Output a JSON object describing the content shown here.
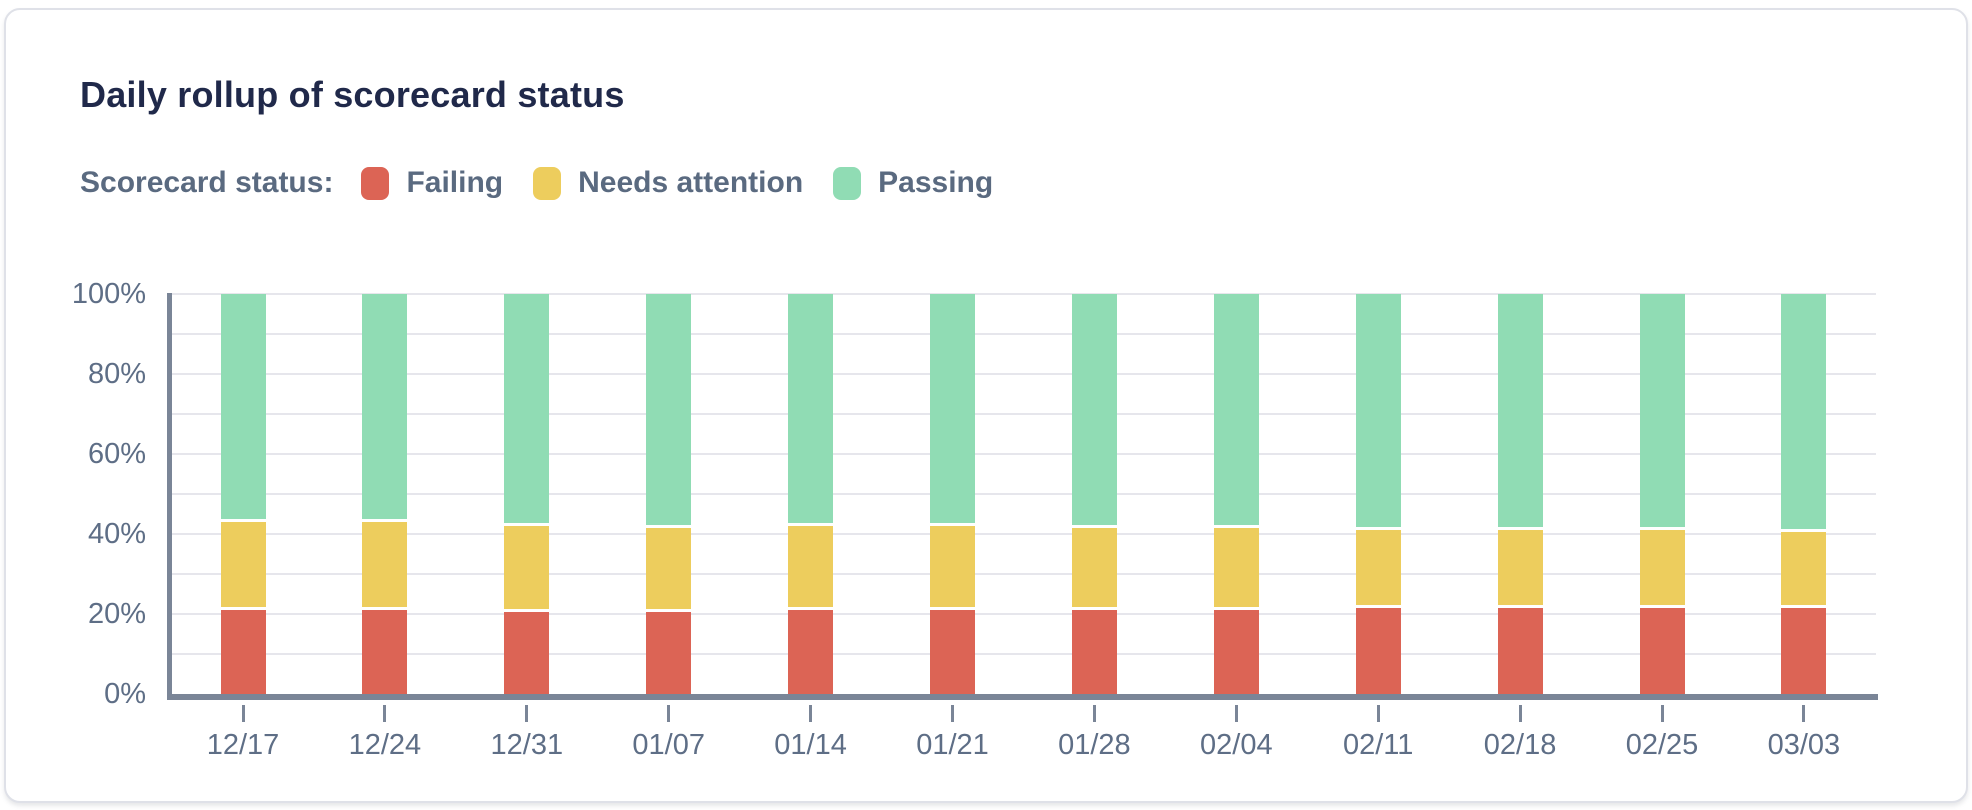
{
  "card": {
    "title": "Daily rollup of scorecard status"
  },
  "legend": {
    "label": "Scorecard status:",
    "items": [
      {
        "name": "failing",
        "label": "Failing",
        "color": "#dc6455"
      },
      {
        "name": "needs-attention",
        "label": "Needs attention",
        "color": "#edcd5d"
      },
      {
        "name": "passing",
        "label": "Passing",
        "color": "#90dcb4"
      }
    ]
  },
  "chart_data": {
    "type": "bar",
    "stacked": true,
    "percent_stacked": true,
    "title": "Daily rollup of scorecard status",
    "categories": [
      "12/17",
      "12/24",
      "12/31",
      "01/07",
      "01/14",
      "01/21",
      "01/28",
      "02/04",
      "02/11",
      "02/18",
      "02/25",
      "03/03"
    ],
    "series": [
      {
        "name": "Failing",
        "color": "#dc6455",
        "values": [
          21,
          21,
          20.5,
          20.5,
          21,
          21,
          21,
          21,
          21.5,
          21.5,
          21.5,
          21.5
        ]
      },
      {
        "name": "Needs attention",
        "color": "#edcd5d",
        "values": [
          22,
          22,
          21.5,
          21,
          21,
          21,
          20.5,
          20.5,
          19.5,
          19.5,
          19.5,
          19
        ]
      },
      {
        "name": "Passing",
        "color": "#90dcb4",
        "values": [
          57,
          57,
          58,
          58.5,
          58,
          58,
          58.5,
          58.5,
          59,
          59,
          59,
          59.5
        ]
      }
    ],
    "xlabel": "",
    "ylabel": "",
    "ylim": [
      0,
      100
    ],
    "ytick_labels": [
      "0%",
      "20%",
      "40%",
      "60%",
      "80%",
      "100%"
    ],
    "ytick_values": [
      0,
      20,
      40,
      60,
      80,
      100
    ],
    "gridlines_every_percent": 10,
    "grid": "horizontal",
    "legend_position": "top-left",
    "colors": {
      "axis": "#7a8597",
      "gridline": "#e6e6ec",
      "tick_label": "#5e6e86"
    }
  }
}
